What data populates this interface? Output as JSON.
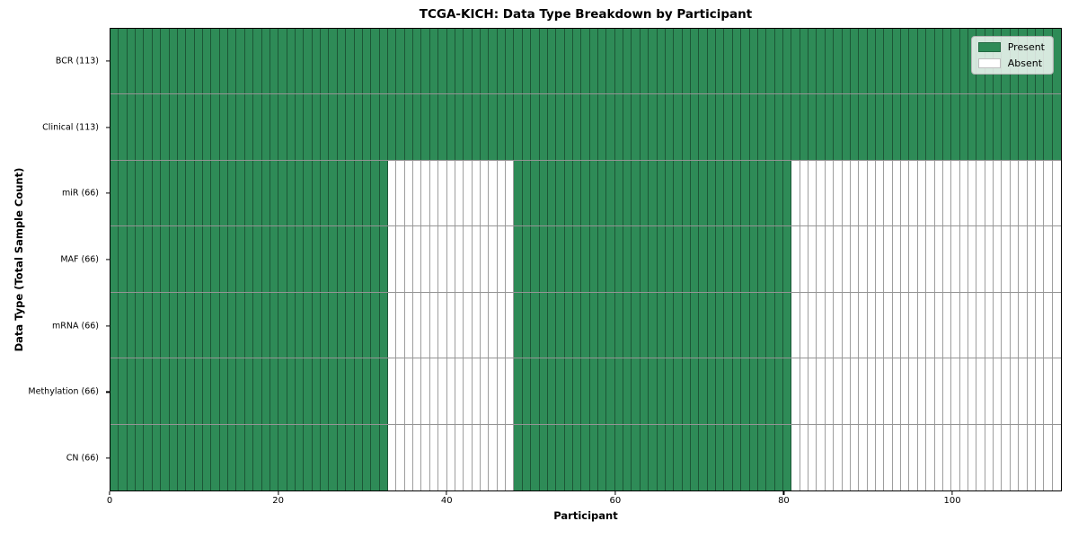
{
  "chart_data": {
    "type": "heatmap",
    "title": "TCGA-KICH: Data Type Breakdown by Participant",
    "xlabel": "Participant",
    "ylabel": "Data Type (Total Sample Count)",
    "n_participants": 113,
    "x_range": [
      0,
      113
    ],
    "x_ticks": [
      0,
      20,
      40,
      60,
      80,
      100
    ],
    "grid": false,
    "legend_position": "upper right",
    "colors": {
      "present": "#2e8b57",
      "absent": "#ffffff",
      "cell_edge": "rgba(0,0,0,0.38)",
      "frame": "#000000",
      "legend_bg": "rgba(255,255,255,0.8)",
      "legend_border": "#b3b3b3"
    },
    "legend_items": [
      {
        "label": "Present",
        "color": "#2e8b57"
      },
      {
        "label": "Absent",
        "color": "#ffffff"
      }
    ],
    "rows": [
      {
        "label": "BCR (113)",
        "data_type": "BCR",
        "total_samples": 113,
        "present_ranges": [
          [
            0,
            113
          ]
        ]
      },
      {
        "label": "Clinical (113)",
        "data_type": "Clinical",
        "total_samples": 113,
        "present_ranges": [
          [
            0,
            113
          ]
        ]
      },
      {
        "label": "miR (66)",
        "data_type": "miR",
        "total_samples": 66,
        "present_ranges": [
          [
            0,
            33
          ],
          [
            48,
            81
          ]
        ]
      },
      {
        "label": "MAF (66)",
        "data_type": "MAF",
        "total_samples": 66,
        "present_ranges": [
          [
            0,
            33
          ],
          [
            48,
            81
          ]
        ]
      },
      {
        "label": "mRNA (66)",
        "data_type": "mRNA",
        "total_samples": 66,
        "present_ranges": [
          [
            0,
            33
          ],
          [
            48,
            81
          ]
        ]
      },
      {
        "label": "Methylation (66)",
        "data_type": "Methylation",
        "total_samples": 66,
        "present_ranges": [
          [
            0,
            33
          ],
          [
            48,
            81
          ]
        ]
      },
      {
        "label": "CN (66)",
        "data_type": "CN",
        "total_samples": 66,
        "present_ranges": [
          [
            0,
            33
          ],
          [
            48,
            81
          ]
        ]
      }
    ]
  }
}
